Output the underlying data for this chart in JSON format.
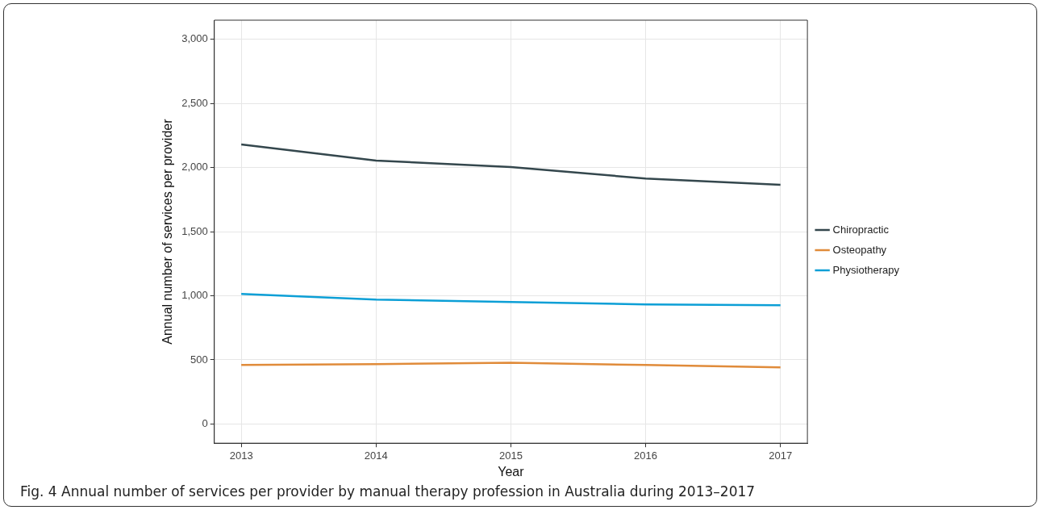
{
  "chart_data": {
    "type": "line",
    "xlabel": "Year",
    "ylabel": "Annual number of services per provider",
    "x": [
      2013,
      2014,
      2015,
      2016,
      2017
    ],
    "series": [
      {
        "name": "Chiropractic",
        "color": "#34474d",
        "values": [
          2180,
          2055,
          2005,
          1915,
          1865
        ]
      },
      {
        "name": "Osteopathy",
        "color": "#e08b3a",
        "values": [
          460,
          466,
          478,
          460,
          441
        ]
      },
      {
        "name": "Physiotherapy",
        "color": "#0c9fd6",
        "values": [
          1015,
          971,
          952,
          933,
          926
        ]
      }
    ],
    "xlim": [
      2012.8,
      2017.2
    ],
    "xticks": [
      2013,
      2014,
      2015,
      2016,
      2017
    ],
    "ylim": [
      -150,
      3150
    ],
    "yticks": [
      0,
      500,
      {
        "value": 1000,
        "label": "1,000"
      },
      {
        "value": 1500,
        "label": "1,500"
      },
      {
        "value": 2000,
        "label": "2,000"
      },
      {
        "value": 2500,
        "label": "2,500"
      },
      {
        "value": 3000,
        "label": "3,000"
      }
    ],
    "grid": true,
    "legend": "right",
    "marker": "none",
    "line_style": "solid",
    "annotations": [
      "Fig. 4 Annual number of services per provider by manual therapy profession in Australia during 2013–2017"
    ]
  }
}
